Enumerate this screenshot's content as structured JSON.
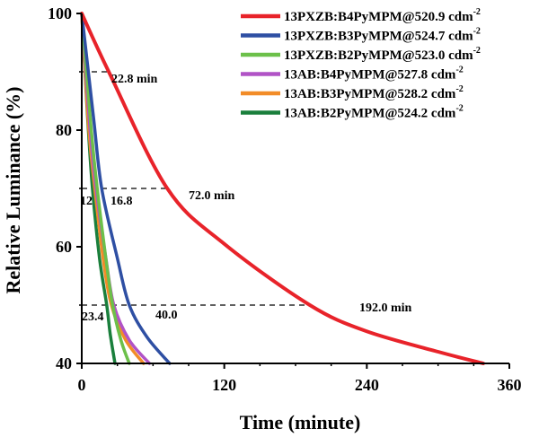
{
  "chart_data": {
    "type": "line",
    "title": "",
    "xlabel": "Time (minute)",
    "ylabel": "Relative Luminance (%)",
    "xlim": [
      0,
      360
    ],
    "ylim": [
      40,
      100
    ],
    "xticks": [
      0,
      120,
      240,
      360
    ],
    "yticks": [
      40,
      60,
      80,
      100
    ],
    "grid": false,
    "legend_position": "top-right",
    "series": [
      {
        "name": "13PXZB:B4PyMPM@520.9 cdm",
        "unit_sup": "-2",
        "color": "#e8232a",
        "lifetime_min": 338,
        "x": [
          0,
          22.8,
          72,
          120,
          192,
          240,
          300,
          338
        ],
        "y": [
          100,
          90,
          70,
          60.5,
          50,
          45.5,
          42,
          40
        ]
      },
      {
        "name": "13PXZB:B3PyMPM@524.7 cdm",
        "unit_sup": "-2",
        "color": "#2e4fa3",
        "lifetime_min": 74,
        "x": [
          0,
          10,
          16.8,
          30,
          40,
          55,
          74
        ],
        "y": [
          100,
          82,
          70,
          58,
          50,
          44.5,
          40
        ]
      },
      {
        "name": "13PXZB:B2PyMPM@523.0 cdm",
        "unit_sup": "-2",
        "color": "#6cc04a",
        "lifetime_min": 40,
        "x": [
          0,
          8,
          13,
          20,
          26,
          33,
          40
        ],
        "y": [
          100,
          80,
          70,
          58.5,
          50,
          44,
          40
        ]
      },
      {
        "name": "13AB:B4PyMPM@527.8 cdm",
        "unit_sup": "-2",
        "color": "#b153c6",
        "lifetime_min": 57,
        "x": [
          0,
          7,
          12,
          20,
          27,
          40,
          57
        ],
        "y": [
          100,
          80,
          70,
          58.5,
          50,
          44,
          40
        ]
      },
      {
        "name": "13AB:B3PyMPM@528.2 cdm",
        "unit_sup": "-2",
        "color": "#f28c28",
        "lifetime_min": 52,
        "x": [
          0,
          6,
          11,
          18,
          25,
          37,
          52
        ],
        "y": [
          100,
          80,
          70,
          58,
          50,
          44,
          40
        ]
      },
      {
        "name": "13AB:B2PyMPM@524.2 cdm",
        "unit_sup": "-2",
        "color": "#1a7f3c",
        "lifetime_min": 28,
        "x": [
          0,
          5,
          9,
          15,
          21,
          24,
          28
        ],
        "y": [
          100,
          82,
          70,
          58,
          50,
          45,
          40
        ]
      }
    ],
    "annotations": [
      {
        "text": "22.8 min",
        "y": 90,
        "x_end": 22.8
      },
      {
        "text": "12",
        "y": 70,
        "x_end": 12
      },
      {
        "text": "16.8",
        "y": 70,
        "x_end": 16.8
      },
      {
        "text": "72.0 min",
        "y": 70,
        "x_end": 72
      },
      {
        "text": "23.4",
        "y": 50,
        "x_end": 23.4
      },
      {
        "text": "40.0",
        "y": 50,
        "x_end": 40
      },
      {
        "text": "192.0 min",
        "y": 50,
        "x_end": 192
      }
    ]
  }
}
